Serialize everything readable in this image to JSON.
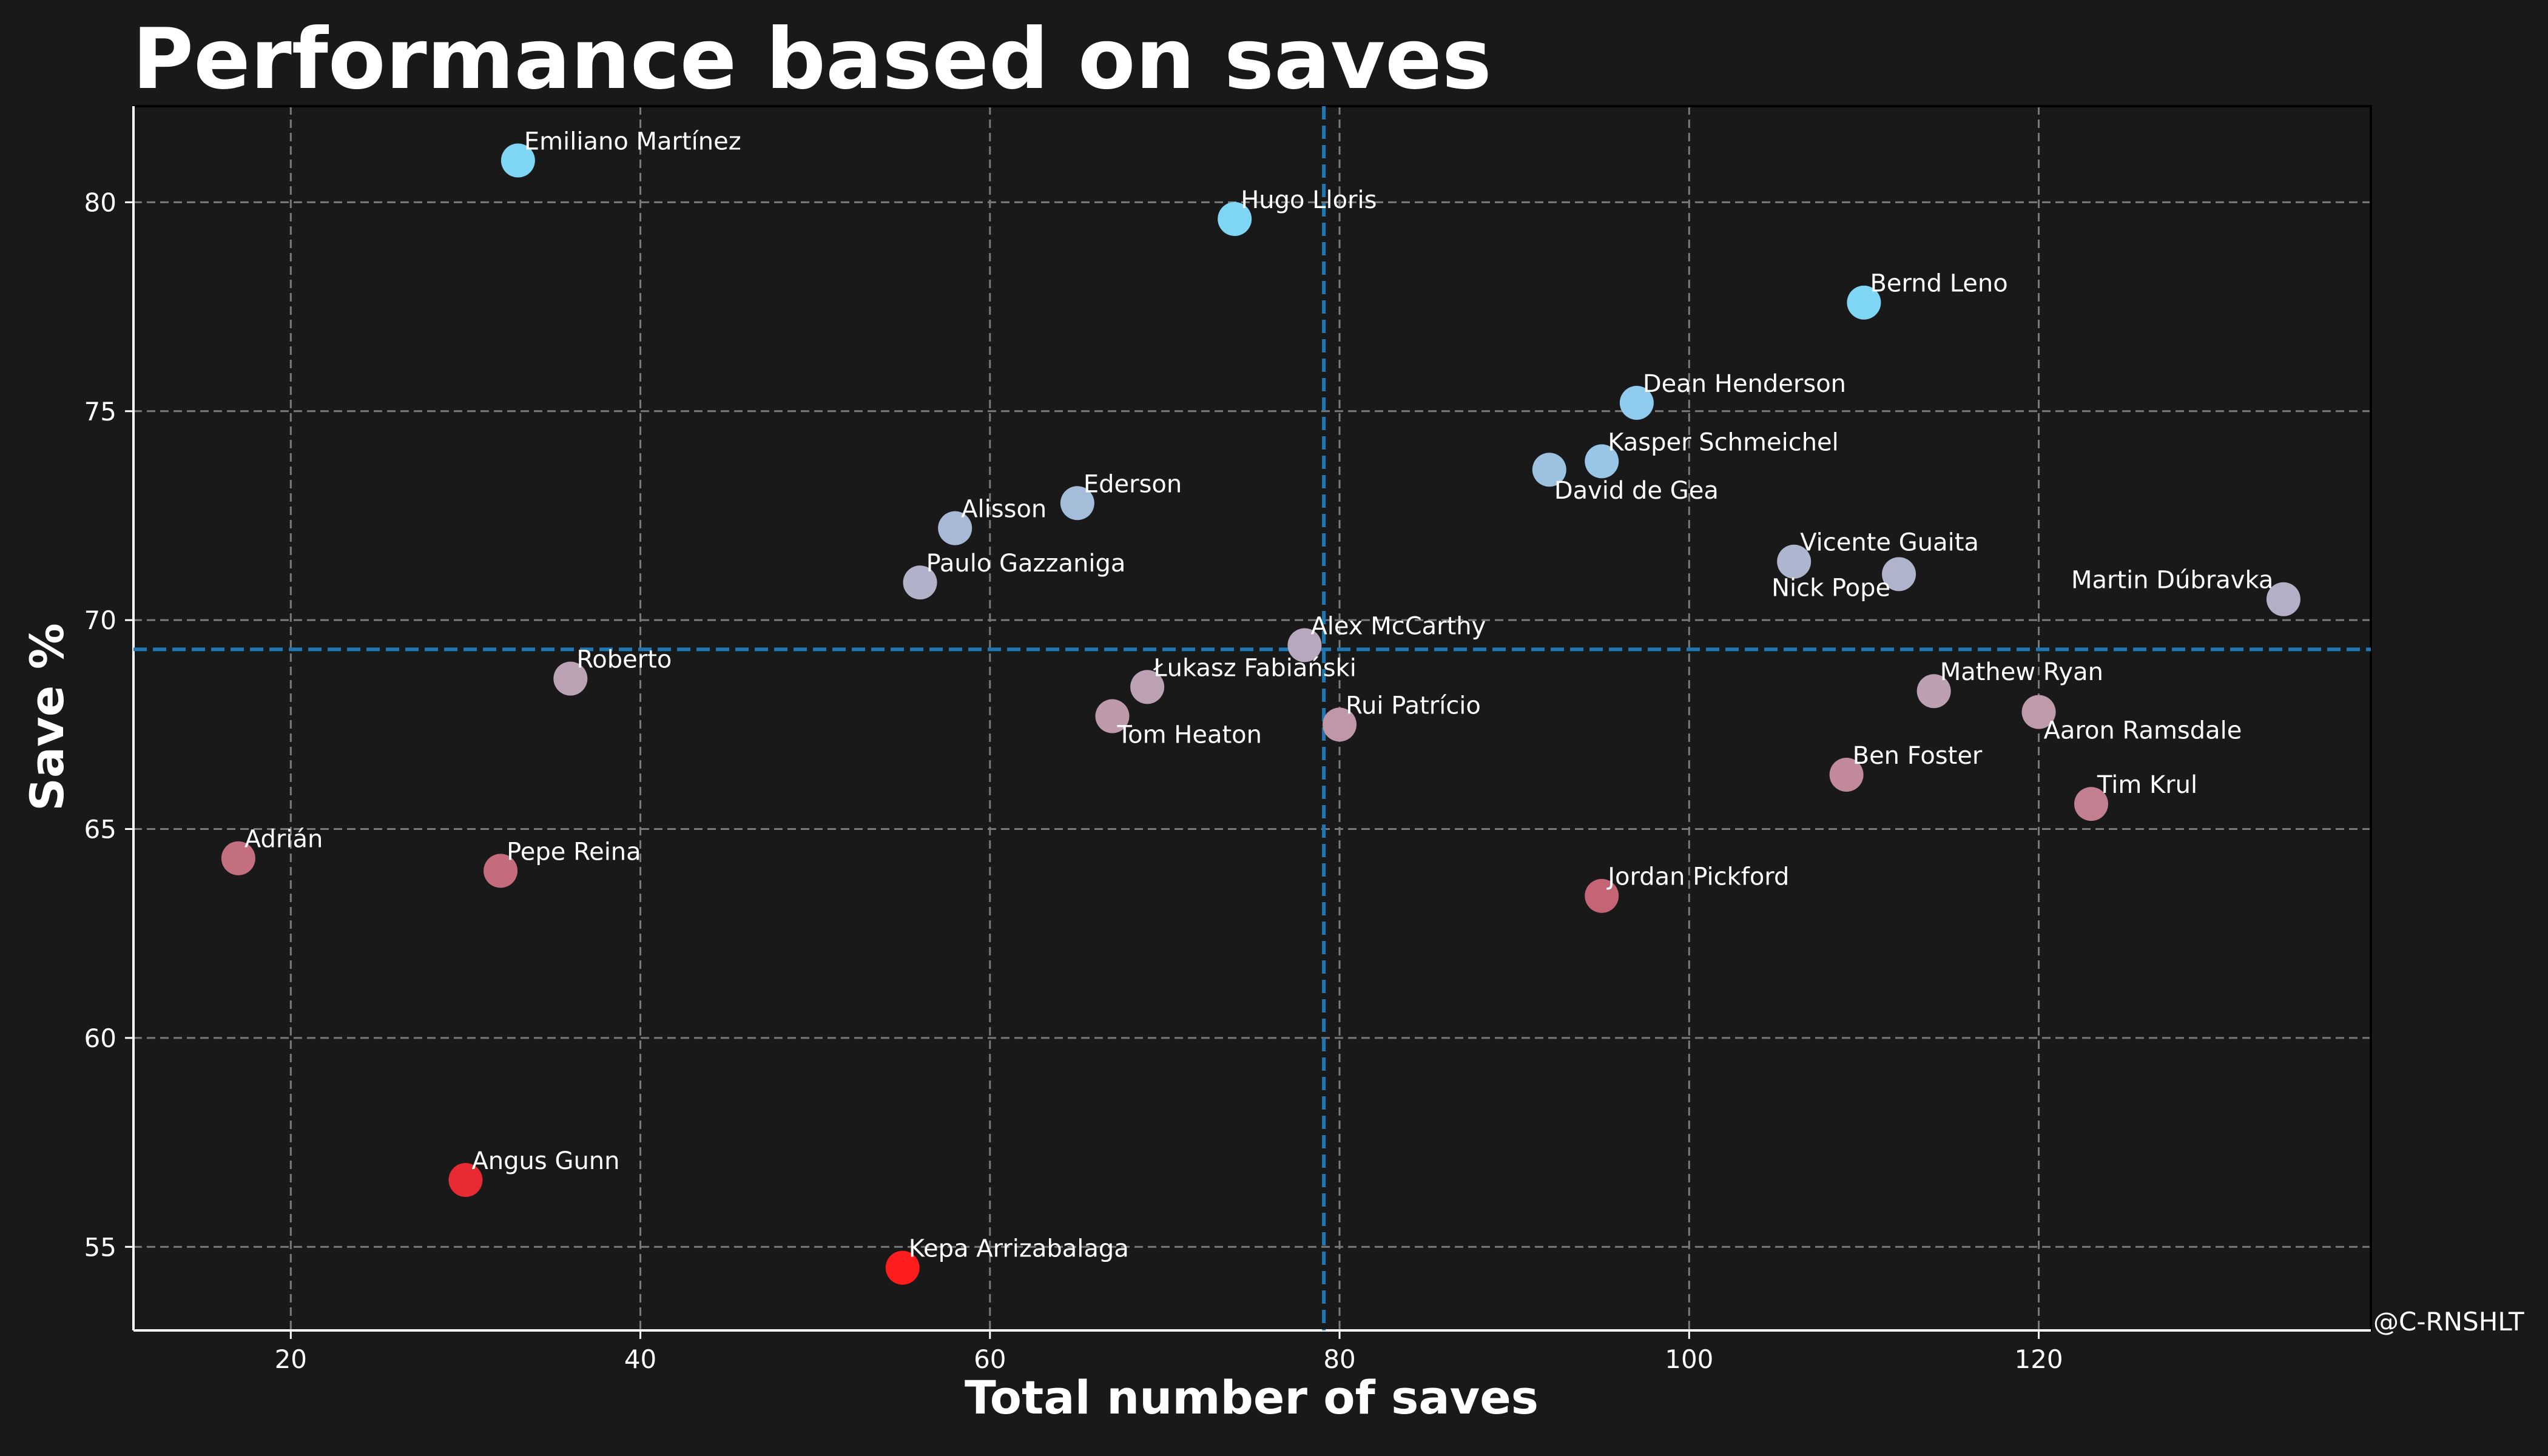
{
  "chart_data": {
    "type": "scatter",
    "title": "Performance based on saves",
    "xlabel": "Total number of saves",
    "ylabel": "Save %",
    "credit": "@C-RNSHLT",
    "xlim": [
      11,
      139
    ],
    "ylim": [
      53,
      82.3
    ],
    "xticks": [
      20,
      40,
      60,
      80,
      100,
      120
    ],
    "yticks": [
      55,
      60,
      65,
      70,
      75,
      80
    ],
    "grid": true,
    "reference_lines": {
      "x": 79.1,
      "y": 69.3
    },
    "colors": {
      "background": "#191919",
      "text": "#ffffff",
      "grid": "#7a7a7a",
      "reference_line": "#1f77b4",
      "low": "#ff1c1c",
      "mid": "#c9c9d6",
      "high": "#7fdcff"
    },
    "points": [
      {
        "name": "Emiliano Martínez",
        "x": 33,
        "y": 81.0,
        "color": "#7fd6f4"
      },
      {
        "name": "Hugo Lloris",
        "x": 74,
        "y": 79.6,
        "color": "#7fd6f4"
      },
      {
        "name": "Bernd Leno",
        "x": 110,
        "y": 77.6,
        "color": "#7fd6f4"
      },
      {
        "name": "Dean Henderson",
        "x": 97,
        "y": 75.2,
        "color": "#8fcbed"
      },
      {
        "name": "Kasper Schmeichel",
        "x": 95,
        "y": 73.8,
        "color": "#98c6e6"
      },
      {
        "name": "David de Gea",
        "x": 92,
        "y": 73.6,
        "color": "#9dc2e0"
      },
      {
        "name": "Ederson",
        "x": 65,
        "y": 72.8,
        "color": "#a4bdd9"
      },
      {
        "name": "Alisson",
        "x": 58,
        "y": 72.2,
        "color": "#a8b9d5"
      },
      {
        "name": "Vicente Guaita",
        "x": 106,
        "y": 71.4,
        "color": "#adb5cf"
      },
      {
        "name": "Nick Pope",
        "x": 112,
        "y": 71.1,
        "color": "#afb3cc"
      },
      {
        "name": "Paulo Gazzaniga",
        "x": 56,
        "y": 70.9,
        "color": "#b1b1c9"
      },
      {
        "name": "Martin Dúbravka",
        "x": 134,
        "y": 70.5,
        "color": "#b4afc6"
      },
      {
        "name": "Alex McCarthy",
        "x": 78,
        "y": 69.4,
        "color": "#b9a8bd"
      },
      {
        "name": "Roberto",
        "x": 36,
        "y": 68.6,
        "color": "#bba2b5"
      },
      {
        "name": "Łukasz Fabiański",
        "x": 69,
        "y": 68.4,
        "color": "#bca0b3"
      },
      {
        "name": "Mathew Ryan",
        "x": 114,
        "y": 68.3,
        "color": "#bd9fb2"
      },
      {
        "name": "Aaron Ramsdale",
        "x": 120,
        "y": 67.8,
        "color": "#be9aab"
      },
      {
        "name": "Tom Heaton",
        "x": 67,
        "y": 67.7,
        "color": "#be99aa"
      },
      {
        "name": "Rui Patrício",
        "x": 80,
        "y": 67.5,
        "color": "#bf97a8"
      },
      {
        "name": "Ben Foster",
        "x": 109,
        "y": 66.3,
        "color": "#c1899a"
      },
      {
        "name": "Tim Krul",
        "x": 123,
        "y": 65.6,
        "color": "#c27f90"
      },
      {
        "name": "Adrián",
        "x": 17,
        "y": 64.3,
        "color": "#c36f80"
      },
      {
        "name": "Pepe Reina",
        "x": 32,
        "y": 64.0,
        "color": "#c46b7c"
      },
      {
        "name": "Jordan Pickford",
        "x": 95,
        "y": 63.4,
        "color": "#c56474"
      },
      {
        "name": "Angus Gunn",
        "x": 30,
        "y": 56.6,
        "color": "#e82a33"
      },
      {
        "name": "Kepa Arrizabalaga",
        "x": 55,
        "y": 54.5,
        "color": "#ff1c1c"
      }
    ]
  }
}
